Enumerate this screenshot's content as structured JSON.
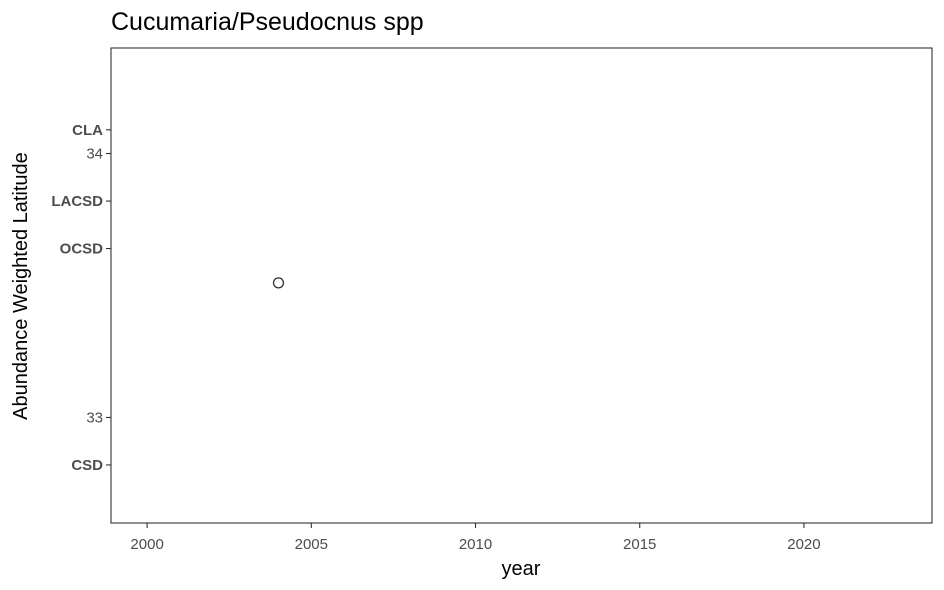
{
  "chart_data": {
    "type": "scatter",
    "title": "Cucumaria/Pseudocnus spp",
    "xlabel": "year",
    "ylabel": "Abundance Weighted Latitude",
    "xlim": [
      1998.9,
      2023.9
    ],
    "ylim": [
      32.6,
      34.4
    ],
    "x_ticks": [
      2000,
      2005,
      2010,
      2015,
      2020
    ],
    "y_ticks": [
      33,
      34
    ],
    "site_labels": [
      {
        "label": "CLA",
        "lat": 34.09
      },
      {
        "label": "LACSD",
        "lat": 33.82
      },
      {
        "label": "OCSD",
        "lat": 33.64
      },
      {
        "label": "CSD",
        "lat": 32.82
      }
    ],
    "points": [
      {
        "x": 2004,
        "y": 33.51
      }
    ],
    "grid": false,
    "legend": "none",
    "colors": {
      "point_stroke": "#333333",
      "panel_border": "#333333",
      "tick_text": "#4d4d4d"
    }
  }
}
